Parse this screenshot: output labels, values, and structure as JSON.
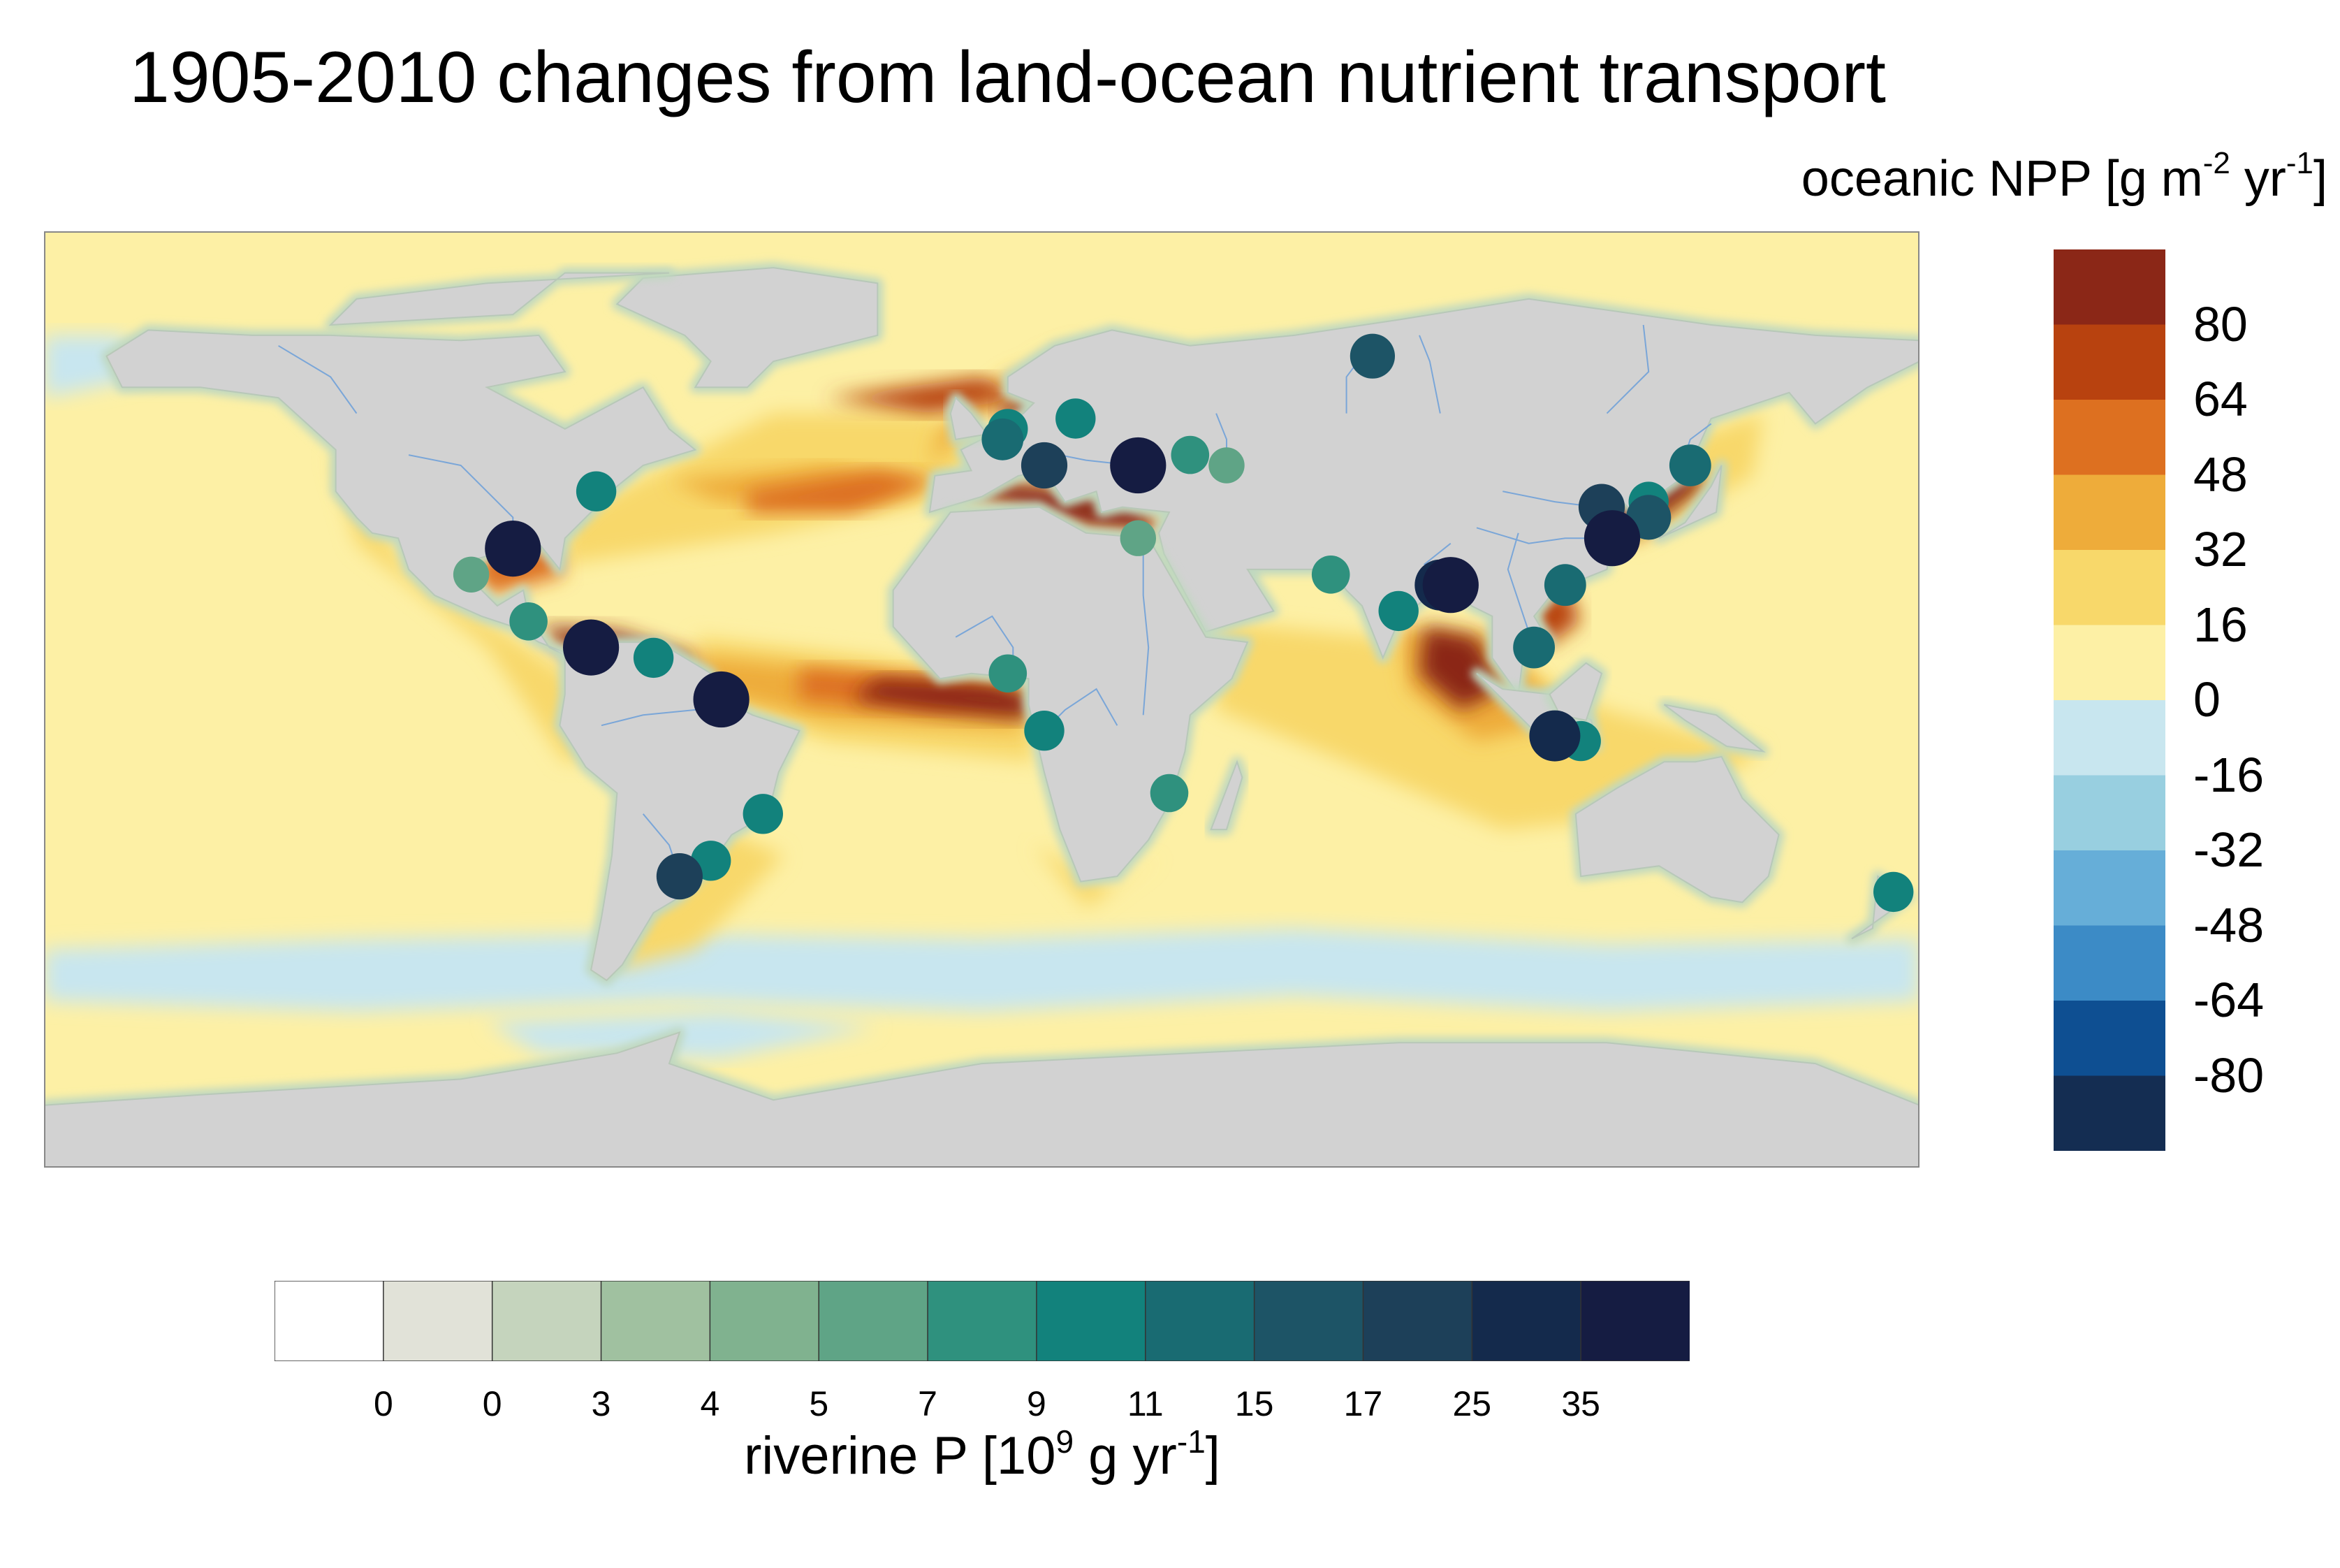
{
  "title": "1905-2010 changes from land-ocean nutrient transport",
  "npp_legend": {
    "label_prefix": "oceanic NPP [g m",
    "label_sup1": "-2",
    "label_mid": " yr",
    "label_sup2": "-1",
    "label_suffix": "]",
    "colors": [
      "#8b2717",
      "#b8420f",
      "#dd7020",
      "#eeac3a",
      "#f8d86a",
      "#fdf0a5",
      "#c8e6ef",
      "#98cfe0",
      "#66aed8",
      "#3c8bc6",
      "#0e4f92",
      "#142d52"
    ],
    "ticks": [
      "80",
      "64",
      "48",
      "32",
      "16",
      "0",
      "-16",
      "-32",
      "-48",
      "-64",
      "-80"
    ]
  },
  "p_legend": {
    "label_prefix": "riverine P [10",
    "label_sup1": "9",
    "label_mid": " g yr",
    "label_sup2": "-1",
    "label_suffix": "]",
    "colors": [
      "#ffffff",
      "#e1e2d8",
      "#c5d4bd",
      "#a0c1a0",
      "#80b28f",
      "#5fa486",
      "#2f917e",
      "#12827c",
      "#196b72",
      "#1d5466",
      "#1d4059",
      "#142a4c",
      "#151c42"
    ],
    "ticks": [
      "0",
      "0",
      "3",
      "4",
      "5",
      "7",
      "9",
      "11",
      "15",
      "17",
      "25",
      "35"
    ]
  },
  "map_colors": {
    "land": "#d2d2d2",
    "coast_halo": "#c0d8c0",
    "river": "#7aa6d8",
    "frame": "#888888"
  },
  "chart_data": {
    "type": "map",
    "title": "1905-2010 changes from land-ocean nutrient transport",
    "field": {
      "name": "oceanic NPP",
      "units": "g m-2 yr-1",
      "levels": [
        -80,
        -64,
        -48,
        -32,
        -16,
        0,
        16,
        32,
        48,
        64,
        80
      ]
    },
    "markers": {
      "name": "riverine P",
      "units": "10^9 g yr-1",
      "levels": [
        0,
        0,
        3,
        4,
        5,
        7,
        9,
        11,
        15,
        17,
        25,
        35
      ],
      "points": [
        {
          "lon": -90,
          "lat": 29,
          "v": 35
        },
        {
          "lon": -74,
          "lat": 40,
          "v": 9
        },
        {
          "lon": -75,
          "lat": 10,
          "v": 35
        },
        {
          "lon": -50,
          "lat": 0,
          "v": 35
        },
        {
          "lon": -58,
          "lat": -34,
          "v": 17
        },
        {
          "lon": -98,
          "lat": 24,
          "v": 5
        },
        {
          "lon": -63,
          "lat": 8,
          "v": 9
        },
        {
          "lon": -52,
          "lat": -31,
          "v": 9
        },
        {
          "lon": -42,
          "lat": -22,
          "v": 9
        },
        {
          "lon": -87,
          "lat": 15,
          "v": 7
        },
        {
          "lon": 30,
          "lat": 45,
          "v": 35
        },
        {
          "lon": 12,
          "lat": 45,
          "v": 17
        },
        {
          "lon": 30,
          "lat": 31,
          "v": 5
        },
        {
          "lon": 5,
          "lat": 52,
          "v": 9
        },
        {
          "lon": 18,
          "lat": 54,
          "v": 9
        },
        {
          "lon": 4,
          "lat": 50,
          "v": 11
        },
        {
          "lon": 40,
          "lat": 47,
          "v": 7
        },
        {
          "lon": 47,
          "lat": 45,
          "v": 5
        },
        {
          "lon": 75,
          "lat": 66,
          "v": 15
        },
        {
          "lon": 12,
          "lat": -6,
          "v": 9
        },
        {
          "lon": 5,
          "lat": 5,
          "v": 7
        },
        {
          "lon": 36,
          "lat": -18,
          "v": 7
        },
        {
          "lon": 90,
          "lat": 22,
          "v": 35
        },
        {
          "lon": 88,
          "lat": 22,
          "v": 25
        },
        {
          "lon": 67,
          "lat": 24,
          "v": 7
        },
        {
          "lon": 80,
          "lat": 17,
          "v": 9
        },
        {
          "lon": 106,
          "lat": 10,
          "v": 11
        },
        {
          "lon": 110,
          "lat": -7,
          "v": 25
        },
        {
          "lon": 115,
          "lat": -8,
          "v": 9
        },
        {
          "lon": 112,
          "lat": 22,
          "v": 11
        },
        {
          "lon": 121,
          "lat": 31,
          "v": 35
        },
        {
          "lon": 119,
          "lat": 37,
          "v": 17
        },
        {
          "lon": 128,
          "lat": 35,
          "v": 15
        },
        {
          "lon": 136,
          "lat": 45,
          "v": 11
        },
        {
          "lon": 128,
          "lat": 38,
          "v": 9
        },
        {
          "lon": 175,
          "lat": -37,
          "v": 9
        }
      ]
    },
    "projection": "equirectangular",
    "lon_range": [
      -180,
      180
    ],
    "lat_range": [
      -90,
      90
    ]
  }
}
